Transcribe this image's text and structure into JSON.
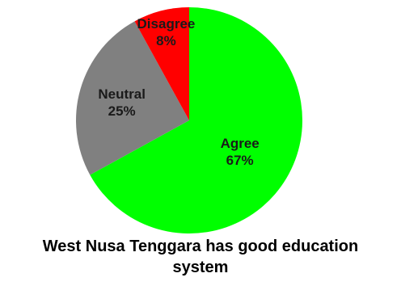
{
  "chart_data": {
    "type": "pie",
    "title_lines": [
      "West Nusa Tenggara has good education",
      "system"
    ],
    "slices": [
      {
        "label": "Agree",
        "value": 67,
        "value_label": "67%",
        "color": "#00ff00"
      },
      {
        "label": "Neutral",
        "value": 25,
        "value_label": "25%",
        "color": "#808080"
      },
      {
        "label": "Disagree",
        "value": 8,
        "value_label": "8%",
        "color": "#ff0000"
      }
    ],
    "start_angle_deg": 0,
    "direction": "clockwise"
  }
}
